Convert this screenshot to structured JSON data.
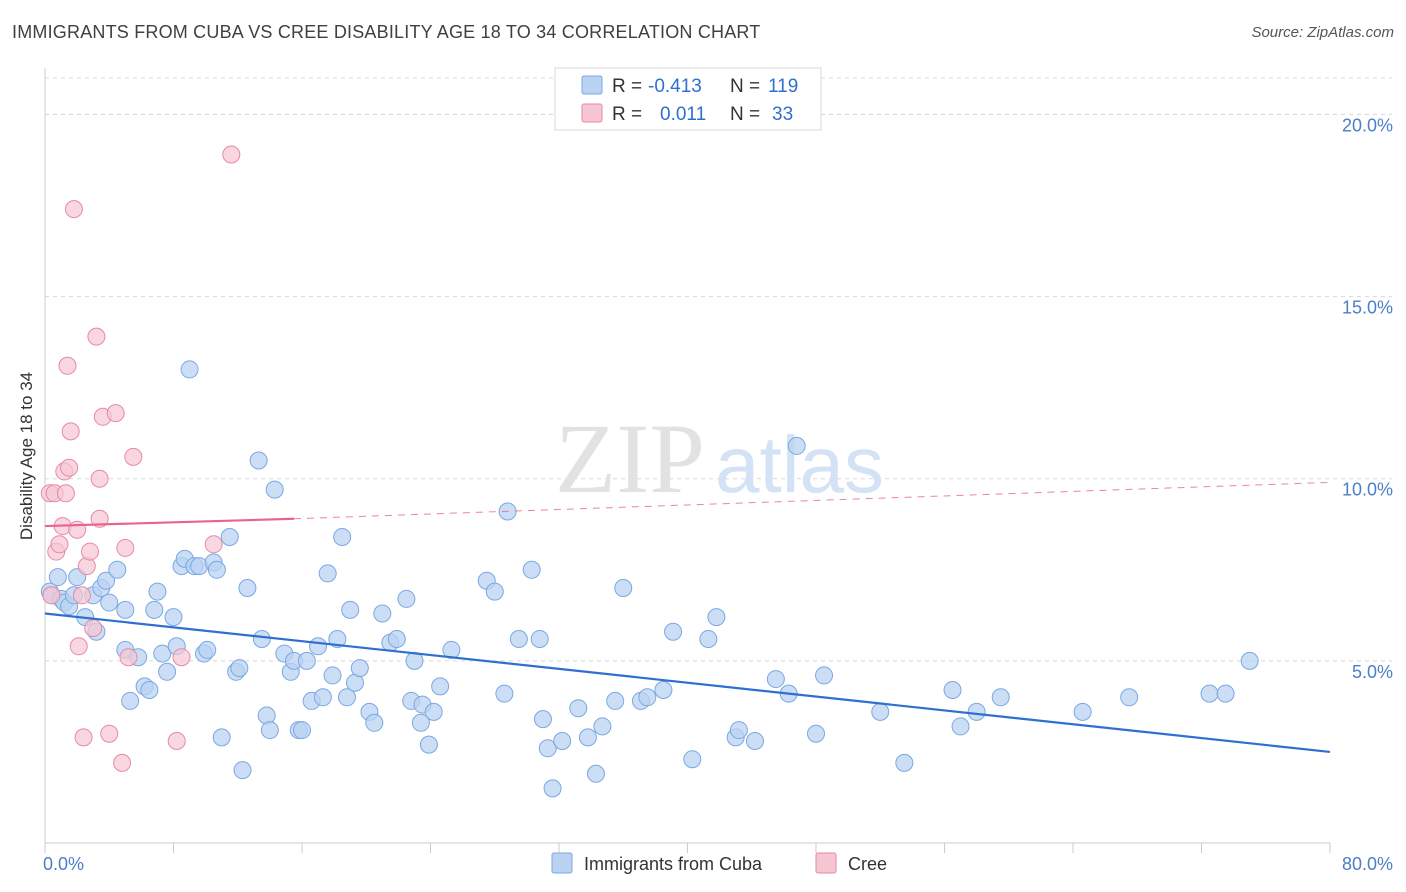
{
  "title": "IMMIGRANTS FROM CUBA VS CREE DISABILITY AGE 18 TO 34 CORRELATION CHART",
  "source": "Source: ZipAtlas.com",
  "watermark": {
    "zip": "ZIP",
    "atlas": "atlas"
  },
  "legend": {
    "rows": [
      {
        "r_label": "R =",
        "r_value": "-0.413",
        "n_label": "N =",
        "n_value": "119"
      },
      {
        "r_label": "R =",
        "r_value": "0.011",
        "n_label": "N =",
        "n_value": "33"
      }
    ]
  },
  "bottom_legend": [
    "Immigrants from Cuba",
    "Cree"
  ],
  "colors": {
    "cuba_fill": "#bad3f3",
    "cuba_stroke": "#7aa8e0",
    "cuba_line": "#2e6fd1",
    "cree_fill": "#f7c6d3",
    "cree_stroke": "#e58aa6",
    "cree_line": "#e8648c",
    "grid": "#d8d8d8",
    "axis_text": "#4a7fc9"
  },
  "chart_data": {
    "type": "scatter",
    "title": "IMMIGRANTS FROM CUBA VS CREE DISABILITY AGE 18 TO 34 CORRELATION CHART",
    "xlabel": "",
    "ylabel": "Disability Age 18 to 34",
    "xlim": [
      0,
      80
    ],
    "ylim": [
      0,
      21
    ],
    "x_tick_labels": [
      "0.0%",
      "80.0%"
    ],
    "y_ticks": [
      5,
      10,
      15,
      20
    ],
    "y_tick_labels": [
      "5.0%",
      "10.0%",
      "15.0%",
      "20.0%"
    ],
    "grid": true,
    "legend_position": "top-center",
    "series": [
      {
        "name": "Immigrants from Cuba",
        "R": -0.413,
        "N": 119,
        "trend": {
          "x": [
            0,
            80
          ],
          "y": [
            6.3,
            2.5
          ],
          "style": "solid"
        },
        "points": [
          [
            0.3,
            6.9
          ],
          [
            0.4,
            6.8
          ],
          [
            0.8,
            7.3
          ],
          [
            1.0,
            6.7
          ],
          [
            1.2,
            6.6
          ],
          [
            1.5,
            6.5
          ],
          [
            1.8,
            6.8
          ],
          [
            2.0,
            7.3
          ],
          [
            2.5,
            6.2
          ],
          [
            3.0,
            6.8
          ],
          [
            3.2,
            5.8
          ],
          [
            3.5,
            7.0
          ],
          [
            3.8,
            7.2
          ],
          [
            4.0,
            6.6
          ],
          [
            4.5,
            7.5
          ],
          [
            5.0,
            5.3
          ],
          [
            5.0,
            6.4
          ],
          [
            5.3,
            3.9
          ],
          [
            5.8,
            5.1
          ],
          [
            6.2,
            4.3
          ],
          [
            6.5,
            4.2
          ],
          [
            6.8,
            6.4
          ],
          [
            7.0,
            6.9
          ],
          [
            7.3,
            5.2
          ],
          [
            7.6,
            4.7
          ],
          [
            8.0,
            6.2
          ],
          [
            8.2,
            5.4
          ],
          [
            8.5,
            7.6
          ],
          [
            8.7,
            7.8
          ],
          [
            9.0,
            13.0
          ],
          [
            9.3,
            7.6
          ],
          [
            9.6,
            7.6
          ],
          [
            9.9,
            5.2
          ],
          [
            10.1,
            5.3
          ],
          [
            10.5,
            7.7
          ],
          [
            10.7,
            7.5
          ],
          [
            11.0,
            2.9
          ],
          [
            11.5,
            8.4
          ],
          [
            11.9,
            4.7
          ],
          [
            12.1,
            4.8
          ],
          [
            12.3,
            2.0
          ],
          [
            12.6,
            7.0
          ],
          [
            13.3,
            10.5
          ],
          [
            13.5,
            5.6
          ],
          [
            13.8,
            3.5
          ],
          [
            14.0,
            3.1
          ],
          [
            14.3,
            9.7
          ],
          [
            14.9,
            5.2
          ],
          [
            15.3,
            4.7
          ],
          [
            15.5,
            5.0
          ],
          [
            15.8,
            3.1
          ],
          [
            16.0,
            3.1
          ],
          [
            16.3,
            5.0
          ],
          [
            16.6,
            3.9
          ],
          [
            17.0,
            5.4
          ],
          [
            17.3,
            4.0
          ],
          [
            17.6,
            7.4
          ],
          [
            17.9,
            4.6
          ],
          [
            18.2,
            5.6
          ],
          [
            18.5,
            8.4
          ],
          [
            18.8,
            4.0
          ],
          [
            19.0,
            6.4
          ],
          [
            19.3,
            4.4
          ],
          [
            19.6,
            4.8
          ],
          [
            20.2,
            3.6
          ],
          [
            20.5,
            3.3
          ],
          [
            21.0,
            6.3
          ],
          [
            21.5,
            5.5
          ],
          [
            21.9,
            5.6
          ],
          [
            22.5,
            6.7
          ],
          [
            22.8,
            3.9
          ],
          [
            23.0,
            5.0
          ],
          [
            23.4,
            3.3
          ],
          [
            23.5,
            3.8
          ],
          [
            23.9,
            2.7
          ],
          [
            24.2,
            3.6
          ],
          [
            24.6,
            4.3
          ],
          [
            25.3,
            5.3
          ],
          [
            27.5,
            7.2
          ],
          [
            28.0,
            6.9
          ],
          [
            28.6,
            4.1
          ],
          [
            28.8,
            9.1
          ],
          [
            29.5,
            5.6
          ],
          [
            30.3,
            7.5
          ],
          [
            30.8,
            5.6
          ],
          [
            31.0,
            3.4
          ],
          [
            31.3,
            2.6
          ],
          [
            31.6,
            1.5
          ],
          [
            32.2,
            2.8
          ],
          [
            33.2,
            3.7
          ],
          [
            33.8,
            2.9
          ],
          [
            34.3,
            1.9
          ],
          [
            34.7,
            3.2
          ],
          [
            35.5,
            3.9
          ],
          [
            36.0,
            7.0
          ],
          [
            37.1,
            3.9
          ],
          [
            37.5,
            4.0
          ],
          [
            38.5,
            4.2
          ],
          [
            39.1,
            5.8
          ],
          [
            40.3,
            2.3
          ],
          [
            41.3,
            5.6
          ],
          [
            41.8,
            6.2
          ],
          [
            43.0,
            2.9
          ],
          [
            43.2,
            3.1
          ],
          [
            44.2,
            2.8
          ],
          [
            45.5,
            4.5
          ],
          [
            46.3,
            4.1
          ],
          [
            46.8,
            10.9
          ],
          [
            48.0,
            3.0
          ],
          [
            48.5,
            4.6
          ],
          [
            52.0,
            3.6
          ],
          [
            53.5,
            2.2
          ],
          [
            56.5,
            4.2
          ],
          [
            57.0,
            3.2
          ],
          [
            58.0,
            3.6
          ],
          [
            59.5,
            4.0
          ],
          [
            64.6,
            3.6
          ],
          [
            67.5,
            4.0
          ],
          [
            72.5,
            4.1
          ],
          [
            73.5,
            4.1
          ],
          [
            75.0,
            5.0
          ]
        ]
      },
      {
        "name": "Cree",
        "R": 0.011,
        "N": 33,
        "trend": {
          "x": [
            0,
            15.5,
            80
          ],
          "y": [
            8.7,
            8.9,
            9.9
          ],
          "style": "solid-then-dashed"
        },
        "points": [
          [
            0.3,
            9.6
          ],
          [
            0.4,
            6.8
          ],
          [
            0.6,
            9.6
          ],
          [
            0.7,
            8.0
          ],
          [
            0.9,
            8.2
          ],
          [
            1.1,
            8.7
          ],
          [
            1.2,
            10.2
          ],
          [
            1.3,
            9.6
          ],
          [
            1.4,
            13.1
          ],
          [
            1.5,
            10.3
          ],
          [
            1.6,
            11.3
          ],
          [
            1.8,
            17.4
          ],
          [
            2.0,
            8.6
          ],
          [
            2.1,
            5.4
          ],
          [
            2.3,
            6.8
          ],
          [
            2.4,
            2.9
          ],
          [
            2.6,
            7.6
          ],
          [
            2.8,
            8.0
          ],
          [
            3.0,
            5.9
          ],
          [
            3.2,
            13.9
          ],
          [
            3.4,
            10.0
          ],
          [
            3.4,
            8.9
          ],
          [
            3.6,
            11.7
          ],
          [
            4.0,
            3.0
          ],
          [
            4.4,
            11.8
          ],
          [
            4.8,
            2.2
          ],
          [
            5.0,
            8.1
          ],
          [
            5.2,
            5.1
          ],
          [
            5.5,
            10.6
          ],
          [
            8.2,
            2.8
          ],
          [
            8.5,
            5.1
          ],
          [
            10.5,
            8.2
          ],
          [
            11.6,
            18.9
          ]
        ]
      }
    ]
  }
}
